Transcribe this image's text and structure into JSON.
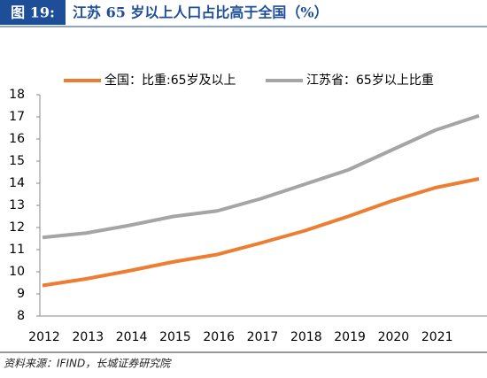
{
  "chart_data": {
    "type": "line",
    "figure_label": "图 19:",
    "title": "江苏 65 岁以上人口占比高于全国（%）",
    "source": "资料来源：IFIND，长城证券研究院",
    "categories": [
      "2012",
      "2013",
      "2014",
      "2015",
      "2016",
      "2017",
      "2018",
      "2019",
      "2020",
      "2021",
      null
    ],
    "series": [
      {
        "name": "全国：比重:65岁及以上",
        "color": "#ed7d31",
        "values": [
          9.38,
          9.68,
          10.05,
          10.45,
          10.78,
          11.3,
          11.85,
          12.5,
          13.2,
          13.8,
          14.2
        ]
      },
      {
        "name": "江苏省：65岁以上比重",
        "color": "#a5a5a5",
        "values": [
          11.55,
          11.75,
          12.1,
          12.5,
          12.75,
          13.3,
          13.95,
          14.6,
          15.5,
          16.4,
          17.05
        ]
      }
    ],
    "ylim": [
      8,
      18
    ],
    "yticks": [
      8,
      9,
      10,
      11,
      12,
      13,
      14,
      15,
      16,
      17,
      18
    ],
    "grid": false,
    "legend": "top"
  }
}
